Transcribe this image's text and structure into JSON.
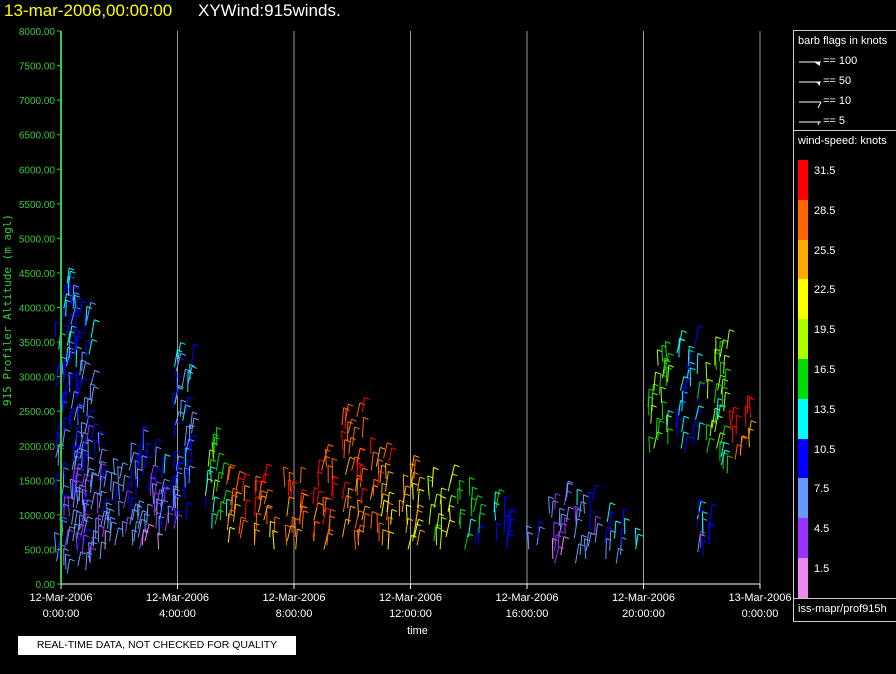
{
  "header": {
    "date_label": "13-mar-2006,00:00:00",
    "product_label": "XYWind:915winds."
  },
  "notice": "REAL-TIME DATA, NOT CHECKED FOR QUALITY",
  "legend": {
    "barb_title": "barb flags in knots",
    "barb_flags": [
      {
        "label": "== 100",
        "icon": "pennant-barb-icon"
      },
      {
        "label": "== 50",
        "icon": "pennant-barb-icon"
      },
      {
        "label": "== 10",
        "icon": "full-barb-icon"
      },
      {
        "label": "== 5",
        "icon": "half-barb-icon"
      }
    ],
    "colorbar_title": "wind-speed: knots",
    "colorbar": [
      {
        "label": "31.5",
        "color": "#ff0000"
      },
      {
        "label": "28.5",
        "color": "#ff6600"
      },
      {
        "label": "25.5",
        "color": "#ffaa00"
      },
      {
        "label": "22.5",
        "color": "#ffff00"
      },
      {
        "label": "19.5",
        "color": "#aaff00"
      },
      {
        "label": "16.5",
        "color": "#00dd00"
      },
      {
        "label": "13.5",
        "color": "#00ffff"
      },
      {
        "label": "10.5",
        "color": "#0000ff"
      },
      {
        "label": "7.5",
        "color": "#6699ff"
      },
      {
        "label": "4.5",
        "color": "#9933ff"
      },
      {
        "label": "1.5",
        "color": "#ee88ee"
      }
    ],
    "source_label": "iss-mapr/prof915h"
  },
  "chart_data": {
    "type": "scatter",
    "subtype": "wind-barb time-height",
    "ylabel": "915 Profiler Altitude (m agl)",
    "xlabel": "time",
    "ylim": [
      0,
      8000
    ],
    "y_ticks": [
      "0.00",
      "500.00",
      "1000.00",
      "1500.00",
      "2000.00",
      "2500.00",
      "3000.00",
      "3500.00",
      "4000.00",
      "4500.00",
      "5000.00",
      "5500.00",
      "6000.00",
      "6500.00",
      "7000.00",
      "7500.00",
      "8000.00"
    ],
    "xlim": [
      "2006-03-12T00:00",
      "2006-03-13T00:00"
    ],
    "x_ticks": [
      {
        "date": "12-Mar-2006",
        "time": "0:00:00"
      },
      {
        "date": "12-Mar-2006",
        "time": "4:00:00"
      },
      {
        "date": "12-Mar-2006",
        "time": "8:00:00"
      },
      {
        "date": "12-Mar-2006",
        "time": "12:00:00"
      },
      {
        "date": "12-Mar-2006",
        "time": "16:00:00"
      },
      {
        "date": "12-Mar-2006",
        "time": "20:00:00"
      },
      {
        "date": "13-Mar-2006",
        "time": "0:00:00"
      }
    ],
    "grid": "vertical",
    "axis_color": "#33cc33",
    "series": [
      {
        "values": [
          {
            "x": "2006-03-12T00:10",
            "y_min": 150,
            "y_max": 4400,
            "speed": 9
          },
          {
            "x": "2006-03-12T00:40",
            "y_min": 200,
            "y_max": 4100,
            "speed": 8
          },
          {
            "x": "2006-03-12T01:00",
            "y_min": 300,
            "y_max": 2100,
            "speed": 6
          },
          {
            "x": "2006-03-12T01:40",
            "y_min": 500,
            "y_max": 1600,
            "speed": 6
          },
          {
            "x": "2006-03-12T02:20",
            "y_min": 500,
            "y_max": 1800,
            "speed": 7
          },
          {
            "x": "2006-03-12T03:00",
            "y_min": 500,
            "y_max": 2000,
            "speed": 6
          },
          {
            "x": "2006-03-12T03:40",
            "y_min": 700,
            "y_max": 1700,
            "speed": 8
          },
          {
            "x": "2006-03-12T04:10",
            "y_min": 800,
            "y_max": 3300,
            "speed": 9
          },
          {
            "x": "2006-03-12T05:20",
            "y_min": 800,
            "y_max": 2000,
            "speed": 15
          },
          {
            "x": "2006-03-12T06:00",
            "y_min": 600,
            "y_max": 1500,
            "speed": 27
          },
          {
            "x": "2006-03-12T07:00",
            "y_min": 500,
            "y_max": 1500,
            "speed": 27
          },
          {
            "x": "2006-03-12T08:00",
            "y_min": 500,
            "y_max": 1500,
            "speed": 27
          },
          {
            "x": "2006-03-12T09:00",
            "y_min": 500,
            "y_max": 1800,
            "speed": 29
          },
          {
            "x": "2006-03-12T10:00",
            "y_min": 500,
            "y_max": 2500,
            "speed": 28
          },
          {
            "x": "2006-03-12T11:00",
            "y_min": 500,
            "y_max": 1900,
            "speed": 26
          },
          {
            "x": "2006-03-12T12:00",
            "y_min": 500,
            "y_max": 1600,
            "speed": 23
          },
          {
            "x": "2006-03-12T13:00",
            "y_min": 500,
            "y_max": 1500,
            "speed": 19
          },
          {
            "x": "2006-03-12T14:00",
            "y_min": 500,
            "y_max": 1300,
            "speed": 15
          },
          {
            "x": "2006-03-12T15:00",
            "y_min": 500,
            "y_max": 1100,
            "speed": 11
          },
          {
            "x": "2006-03-12T16:00",
            "y_min": 500,
            "y_max": 700,
            "speed": 8
          },
          {
            "x": "2006-03-12T17:00",
            "y_min": 300,
            "y_max": 1300,
            "speed": 5
          },
          {
            "x": "2006-03-12T18:00",
            "y_min": 300,
            "y_max": 1200,
            "speed": 7
          },
          {
            "x": "2006-03-12T19:00",
            "y_min": 300,
            "y_max": 900,
            "speed": 9
          },
          {
            "x": "2006-03-12T20:00",
            "y_min": 500,
            "y_max": 600,
            "speed": 15
          },
          {
            "x": "2006-03-12T20:30",
            "y_min": 1900,
            "y_max": 3300,
            "speed": 17
          },
          {
            "x": "2006-03-12T21:30",
            "y_min": 1900,
            "y_max": 3500,
            "speed": 12
          },
          {
            "x": "2006-03-12T22:00",
            "y_min": 400,
            "y_max": 1000,
            "speed": 9
          },
          {
            "x": "2006-03-12T22:30",
            "y_min": 1600,
            "y_max": 3400,
            "speed": 17
          },
          {
            "x": "2006-03-12T23:20",
            "y_min": 1800,
            "y_max": 2500,
            "speed": 28
          }
        ]
      }
    ]
  }
}
